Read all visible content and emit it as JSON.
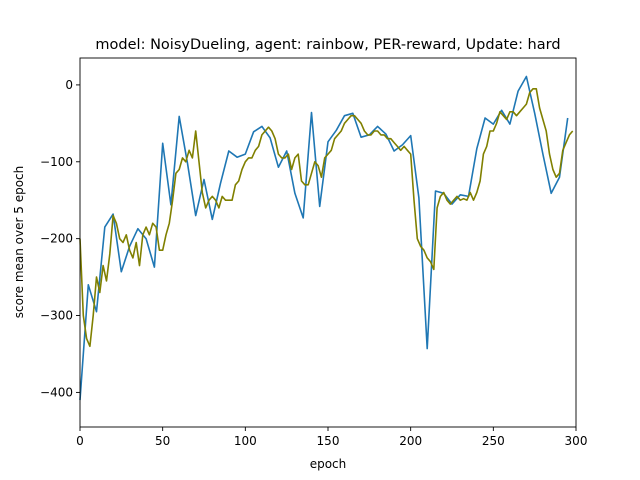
{
  "chart_data": {
    "type": "line",
    "title": "model: NoisyDueling, agent: rainbow, PER-reward, Update: hard",
    "xlabel": "epoch",
    "ylabel": "score mean over 5 epoch",
    "xlim": [
      0,
      300
    ],
    "ylim": [
      -445,
      35
    ],
    "xticks": [
      0,
      50,
      100,
      150,
      200,
      250,
      300
    ],
    "yticks": [
      -400,
      -300,
      -200,
      -100,
      0
    ],
    "ytick_labels": [
      "−400",
      "−300",
      "−200",
      "−100",
      "0"
    ],
    "grid": false,
    "series": [
      {
        "color": "#1f77b4",
        "x": [
          0,
          5,
          10,
          15,
          20,
          25,
          30,
          35,
          40,
          45,
          50,
          55,
          60,
          65,
          70,
          75,
          80,
          85,
          90,
          95,
          100,
          105,
          110,
          115,
          120,
          125,
          130,
          135,
          140,
          145,
          150,
          155,
          160,
          165,
          170,
          175,
          180,
          185,
          190,
          195,
          200,
          205,
          210,
          215,
          220,
          225,
          230,
          235,
          240,
          245,
          250,
          255,
          260,
          265,
          270,
          275,
          280,
          285,
          290,
          295
        ],
        "y": [
          -410,
          -260,
          -295,
          -185,
          -168,
          -243,
          -210,
          -187,
          -200,
          -237,
          -76,
          -156,
          -41,
          -102,
          -170,
          -123,
          -175,
          -128,
          -86,
          -94,
          -90,
          -61,
          -54,
          -69,
          -107,
          -86,
          -141,
          -173,
          -36,
          -158,
          -74,
          -59,
          -40,
          -37,
          -68,
          -65,
          -54,
          -64,
          -86,
          -78,
          -66,
          -147,
          -343,
          -138,
          -141,
          -155,
          -143,
          -145,
          -83,
          -43,
          -51,
          -33,
          -51,
          -8,
          11,
          -37,
          -90,
          -141,
          -120,
          -43
        ]
      },
      {
        "color": "#808000",
        "x": [
          0,
          2,
          4,
          6,
          8,
          10,
          12,
          14,
          16,
          18,
          20,
          22,
          24,
          26,
          28,
          30,
          32,
          34,
          36,
          38,
          40,
          42,
          44,
          46,
          48,
          50,
          52,
          54,
          56,
          58,
          60,
          62,
          64,
          66,
          68,
          70,
          72,
          74,
          76,
          78,
          80,
          82,
          84,
          86,
          88,
          90,
          92,
          94,
          96,
          98,
          100,
          102,
          104,
          106,
          108,
          110,
          112,
          114,
          116,
          118,
          120,
          122,
          124,
          126,
          128,
          130,
          132,
          134,
          136,
          138,
          140,
          142,
          144,
          146,
          148,
          150,
          152,
          154,
          156,
          158,
          160,
          162,
          164,
          166,
          168,
          170,
          172,
          174,
          176,
          178,
          180,
          182,
          184,
          186,
          188,
          190,
          192,
          194,
          196,
          198,
          200,
          202,
          204,
          206,
          208,
          210,
          212,
          214,
          216,
          218,
          220,
          222,
          224,
          226,
          228,
          230,
          232,
          234,
          236,
          238,
          240,
          242,
          244,
          246,
          248,
          250,
          252,
          254,
          256,
          258,
          260,
          262,
          264,
          266,
          268,
          270,
          272,
          274,
          276,
          278,
          280,
          282,
          284,
          286,
          288,
          290,
          292,
          294,
          296,
          298
        ],
        "y": [
          -200,
          -300,
          -330,
          -340,
          -300,
          -250,
          -270,
          -235,
          -255,
          -220,
          -170,
          -180,
          -200,
          -205,
          -195,
          -215,
          -225,
          -205,
          -235,
          -195,
          -185,
          -195,
          -180,
          -185,
          -215,
          -215,
          -195,
          -180,
          -150,
          -115,
          -110,
          -95,
          -100,
          -85,
          -95,
          -60,
          -100,
          -140,
          -160,
          -150,
          -145,
          -150,
          -160,
          -145,
          -150,
          -150,
          -150,
          -130,
          -125,
          -110,
          -100,
          -95,
          -95,
          -85,
          -80,
          -65,
          -60,
          -55,
          -60,
          -70,
          -90,
          -95,
          -95,
          -90,
          -110,
          -95,
          -90,
          -125,
          -130,
          -130,
          -115,
          -100,
          -105,
          -120,
          -95,
          -90,
          -85,
          -70,
          -65,
          -60,
          -50,
          -45,
          -40,
          -40,
          -45,
          -50,
          -60,
          -65,
          -65,
          -60,
          -60,
          -65,
          -65,
          -70,
          -70,
          -75,
          -80,
          -85,
          -80,
          -85,
          -90,
          -150,
          -200,
          -210,
          -215,
          -225,
          -230,
          -240,
          -160,
          -145,
          -140,
          -150,
          -155,
          -150,
          -145,
          -150,
          -148,
          -150,
          -140,
          -150,
          -140,
          -125,
          -90,
          -80,
          -60,
          -60,
          -50,
          -35,
          -40,
          -45,
          -35,
          -35,
          -40,
          -35,
          -30,
          -25,
          -10,
          -5,
          -5,
          -30,
          -45,
          -60,
          -90,
          -110,
          -120,
          -115,
          -85,
          -75,
          -65,
          -60
        ]
      }
    ]
  }
}
